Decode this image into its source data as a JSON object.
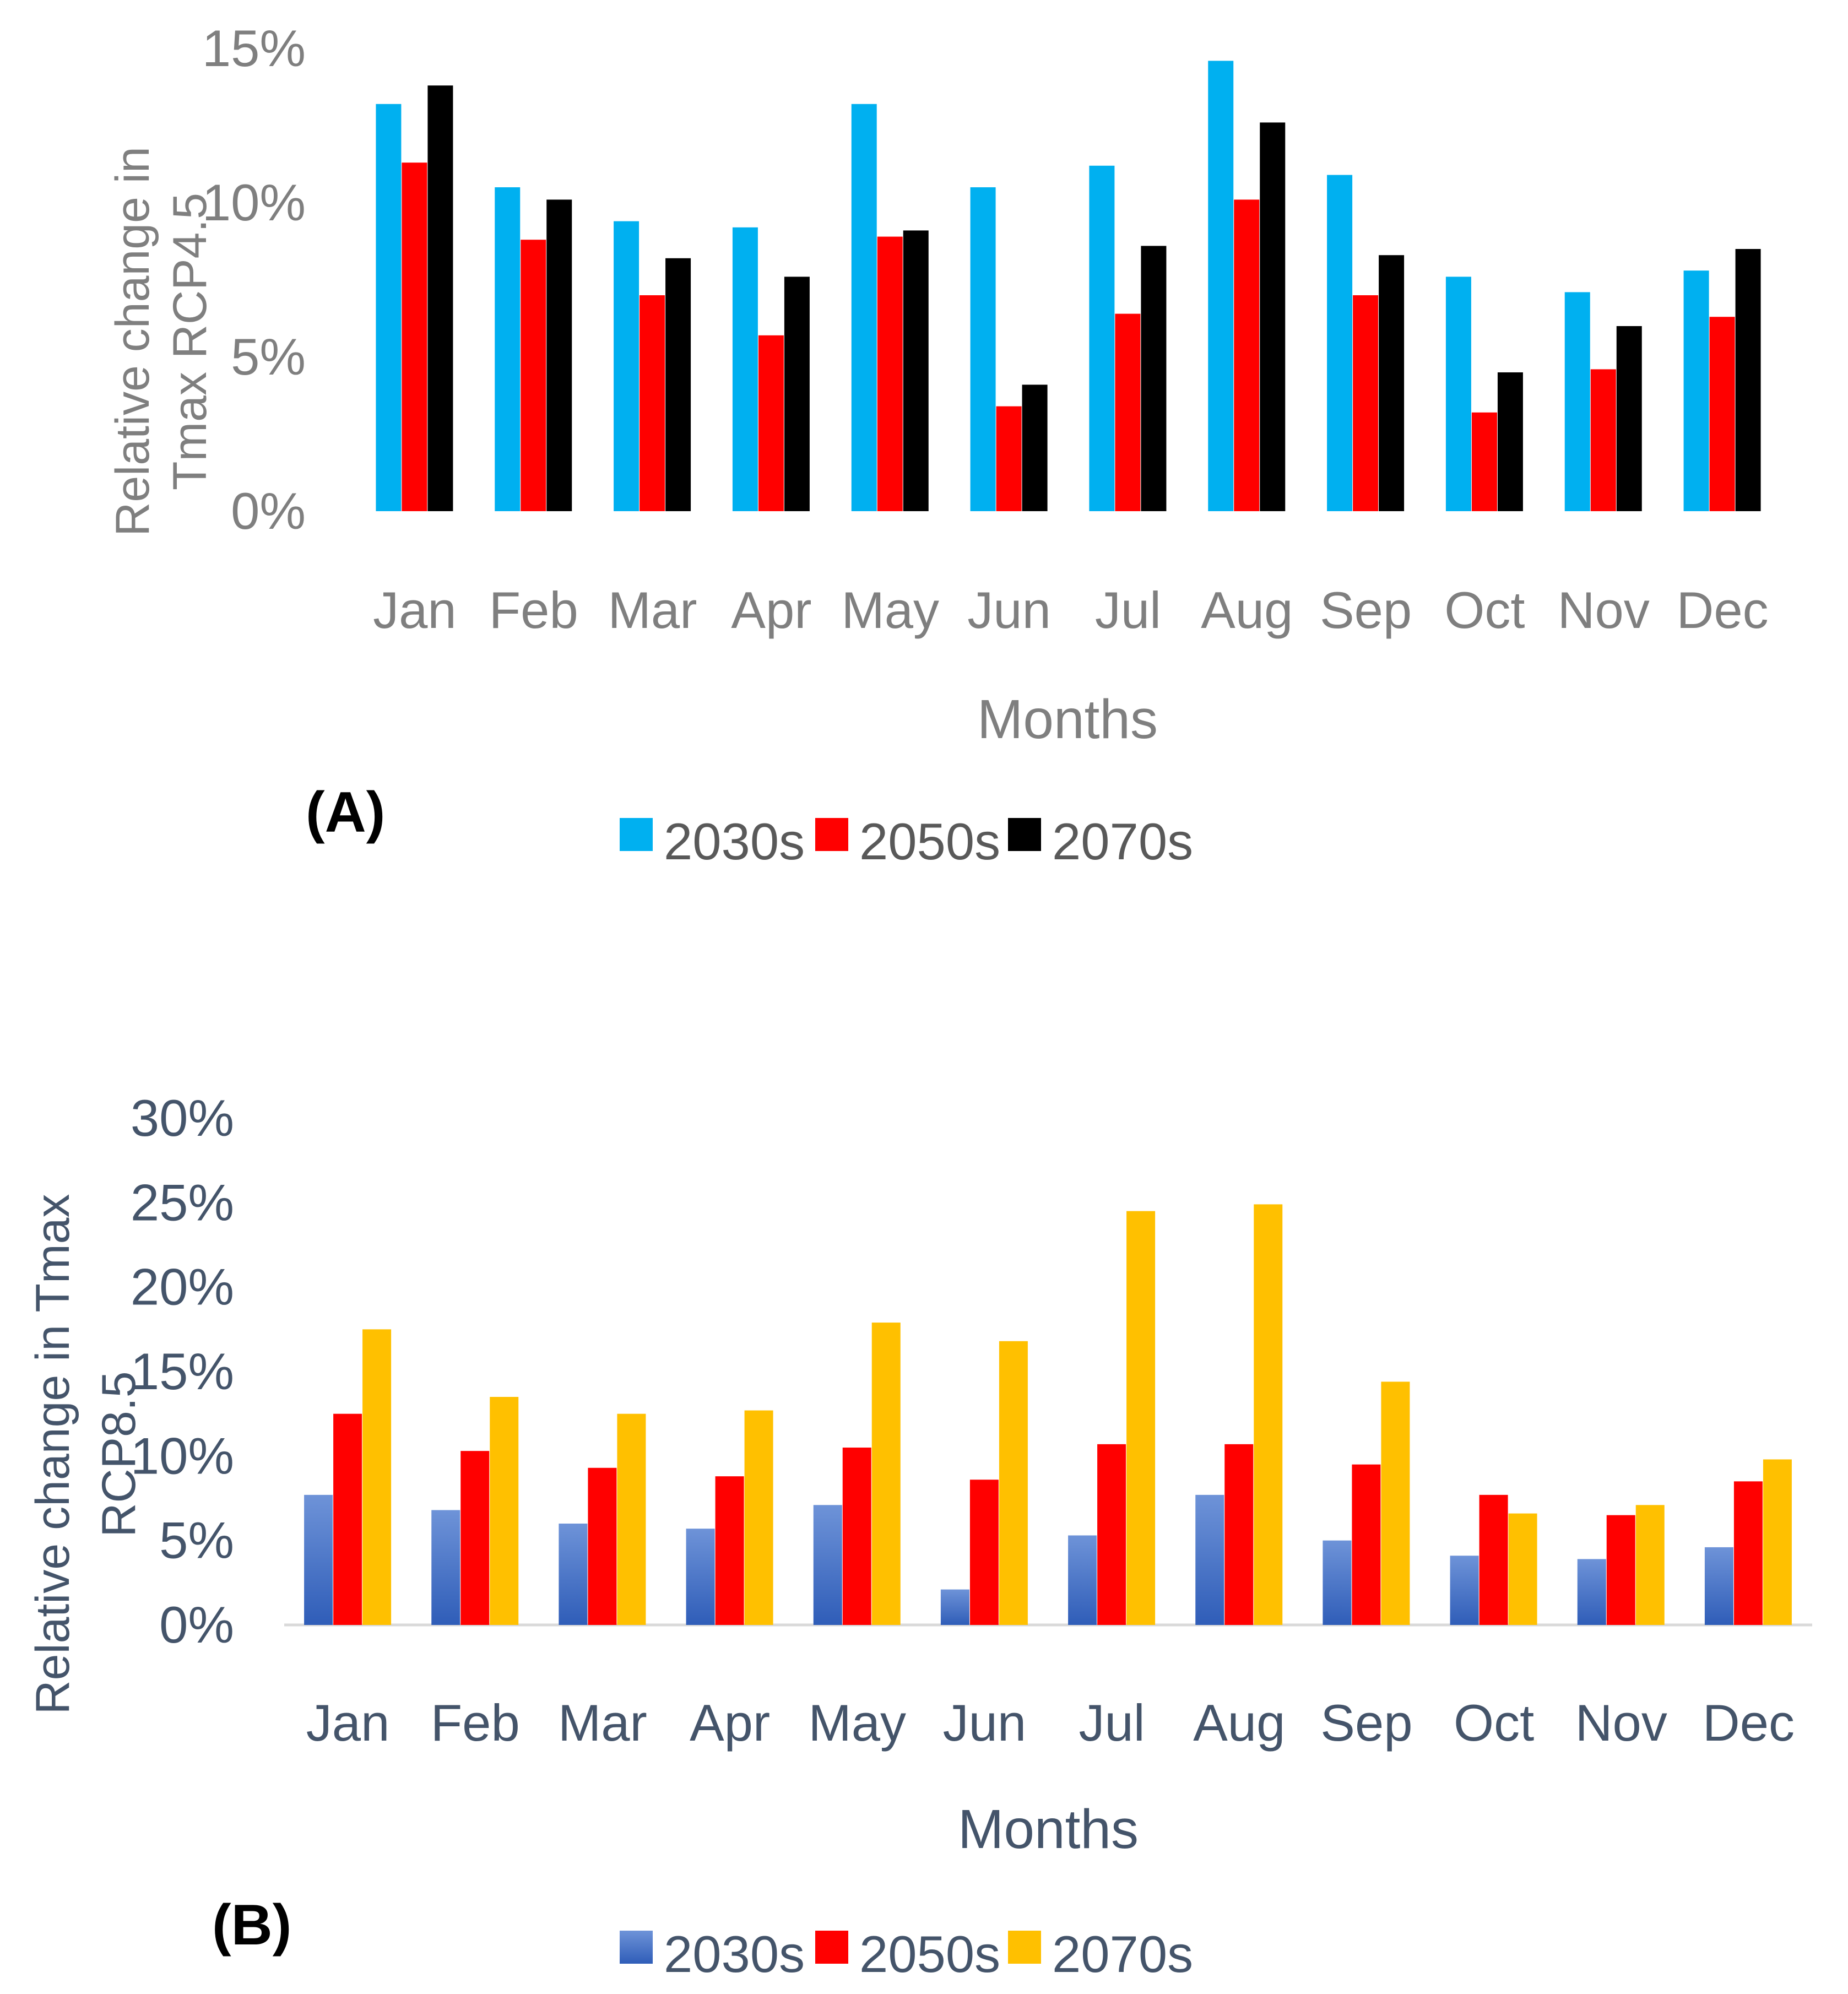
{
  "chart_data": [
    {
      "type": "bar",
      "panel_label": "(A)",
      "categories": [
        "Jan",
        "Feb",
        "Mar",
        "Apr",
        "May",
        "Jun",
        "Jul",
        "Aug",
        "Sep",
        "Oct",
        "Nov",
        "Dec"
      ],
      "series": [
        {
          "name": "2030s",
          "color": "#00b0f0",
          "values": [
            13.2,
            10.5,
            9.4,
            9.2,
            13.2,
            10.5,
            11.2,
            14.6,
            10.9,
            7.6,
            7.1,
            7.8
          ]
        },
        {
          "name": "2050s",
          "color": "#ff0000",
          "values": [
            11.3,
            8.8,
            7.0,
            5.7,
            8.9,
            3.4,
            6.4,
            10.1,
            7.0,
            3.2,
            4.6,
            6.3
          ]
        },
        {
          "name": "2070s",
          "color": "#000000",
          "values": [
            13.8,
            10.1,
            8.2,
            7.6,
            9.1,
            4.1,
            8.6,
            12.6,
            8.3,
            4.5,
            6.0,
            8.5
          ]
        }
      ],
      "xlabel": "Months",
      "ylabel_lines": [
        "Relative change in",
        "Tmax RCP4.5"
      ],
      "yticks": [
        "0%",
        "5%",
        "10%",
        "15%"
      ],
      "ylim": [
        0,
        15
      ],
      "ytick_step": 5,
      "grid": false,
      "legend_position": "bottom"
    },
    {
      "type": "bar",
      "panel_label": "(B)",
      "categories": [
        "Jan",
        "Feb",
        "Mar",
        "Apr",
        "May",
        "Jun",
        "Jul",
        "Aug",
        "Sep",
        "Oct",
        "Nov",
        "Dec"
      ],
      "series": [
        {
          "name": "2030s",
          "color": "#4472c4",
          "values": [
            7.7,
            6.8,
            6.0,
            5.7,
            7.1,
            2.1,
            5.3,
            7.7,
            5.0,
            4.1,
            3.9,
            4.6
          ]
        },
        {
          "name": "2050s",
          "color": "#ff0000",
          "values": [
            12.5,
            10.3,
            9.3,
            8.8,
            10.5,
            8.6,
            10.7,
            10.7,
            9.5,
            7.7,
            6.5,
            8.5
          ]
        },
        {
          "name": "2070s",
          "color": "#ffc000",
          "values": [
            17.5,
            13.5,
            12.5,
            12.7,
            17.9,
            16.8,
            24.5,
            24.9,
            14.4,
            6.6,
            7.1,
            9.8
          ]
        }
      ],
      "xlabel": "Months",
      "ylabel_lines": [
        "Relative change in Tmax",
        "RCP8.5"
      ],
      "yticks": [
        "0%",
        "5%",
        "10%",
        "15%",
        "20%",
        "25%",
        "30%"
      ],
      "ylim": [
        0,
        30
      ],
      "ytick_step": 5,
      "grid": false,
      "legend_position": "bottom"
    }
  ]
}
